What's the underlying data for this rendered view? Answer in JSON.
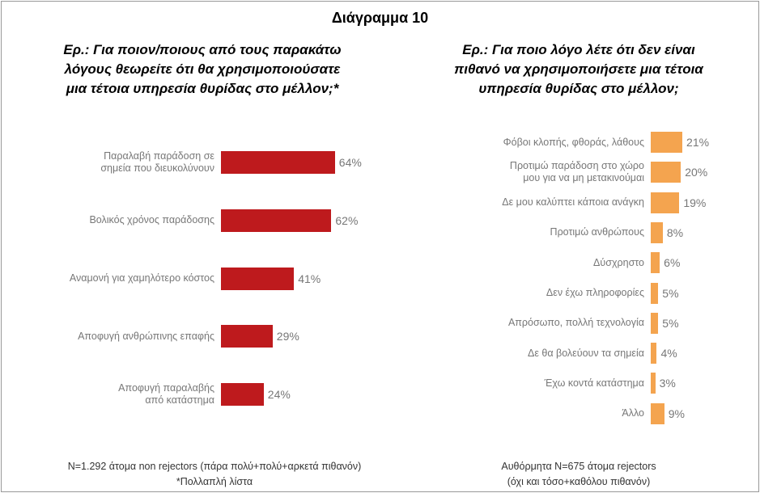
{
  "header": {
    "title": "Διάγραμμα 10"
  },
  "chart_data": [
    {
      "type": "hbar",
      "title": "Ερ.: Για ποιον/ποιους από τους παρακάτω\nλόγους θεωρείτε ότι θα χρησιμοποιούσατε\nμια τέτοια υπηρεσία θυρίδας στο μέλλον;*",
      "categories": [
        "Παραλαβή παράδοση σε\nσημεία που διευκολύνουν",
        "Βολικός χρόνος παράδοσης",
        "Αναμονή για χαμηλότερο κόστος",
        "Αποφυγή ανθρώπινης επαφής",
        "Αποφυγή παραλαβής\nαπό κατάστημα"
      ],
      "values": [
        64,
        62,
        41,
        29,
        24
      ],
      "value_labels": [
        "64%",
        "62%",
        "41%",
        "29%",
        "24%"
      ],
      "color": "#be1a1d",
      "note": "N=1.292 άτομα non rejectors (πάρα πολύ+πολύ+αρκετά πιθανόν)\n*Πολλαπλή λίστα"
    },
    {
      "type": "hbar",
      "title": "Ερ.: Για ποιο λόγο λέτε ότι δεν είναι\nπιθανό να χρησιμοποιήσετε μια τέτοια\nυπηρεσία θυρίδας στο μέλλον;",
      "categories": [
        "Φόβοι κλοπής, φθοράς, λάθους",
        "Προτιμώ παράδοση στο χώρο\nμου για να μη μετακινούμαι",
        "Δε μου καλύπτει κάποια ανάγκη",
        "Προτιμώ ανθρώπους",
        "Δύσχρηστο",
        "Δεν έχω πληροφορίες",
        "Απρόσωπο, πολλή τεχνολογία",
        "Δε θα βολεύουν τα σημεία",
        "Έχω κοντά κατάστημα",
        "Άλλο"
      ],
      "values": [
        21,
        20,
        19,
        8,
        6,
        5,
        5,
        4,
        3,
        9
      ],
      "value_labels": [
        "21%",
        "20%",
        "19%",
        "8%",
        "6%",
        "5%",
        "5%",
        "4%",
        "3%",
        "9%"
      ],
      "color": "#f4a44f",
      "note": "Αυθόρμητα N=675 άτομα rejectors\n(όχι και τόσο+καθόλου πιθανόν)"
    }
  ]
}
